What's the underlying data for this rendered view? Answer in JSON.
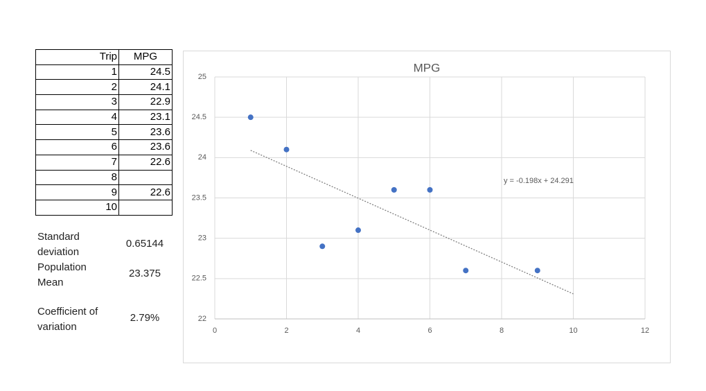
{
  "table": {
    "header": [
      "Trip",
      "MPG"
    ],
    "rows": [
      [
        1,
        24.5
      ],
      [
        2,
        24.1
      ],
      [
        3,
        22.9
      ],
      [
        4,
        23.1
      ],
      [
        5,
        23.6
      ],
      [
        6,
        23.6
      ],
      [
        7,
        22.6
      ],
      [
        8,
        null
      ],
      [
        9,
        22.6
      ],
      [
        10,
        null
      ]
    ]
  },
  "stats": [
    {
      "label": "Standard deviation",
      "value": "0.65144"
    },
    {
      "label": "Population Mean",
      "value": "23.375"
    },
    {
      "label": "Coefficient of variation",
      "value": "2.79%"
    }
  ],
  "chart_data": {
    "type": "scatter",
    "title": "MPG",
    "series": [
      {
        "name": "MPG",
        "color": "#4472c4",
        "x": [
          1,
          2,
          3,
          4,
          5,
          6,
          7,
          9
        ],
        "values": [
          24.5,
          24.1,
          22.9,
          23.1,
          23.6,
          23.6,
          22.6,
          22.6
        ]
      }
    ],
    "trendline": {
      "label": "y = -0.198x + 24.291",
      "x": [
        1,
        10
      ],
      "values": [
        24.09,
        22.31
      ],
      "color": "#7f7f7f"
    },
    "xlim": [
      0,
      12
    ],
    "ylim": [
      22,
      25
    ],
    "xticks": [
      0,
      2,
      4,
      6,
      8,
      10,
      12
    ],
    "yticks": [
      22,
      22.5,
      23,
      23.5,
      24,
      24.5,
      25
    ],
    "grid": true
  }
}
